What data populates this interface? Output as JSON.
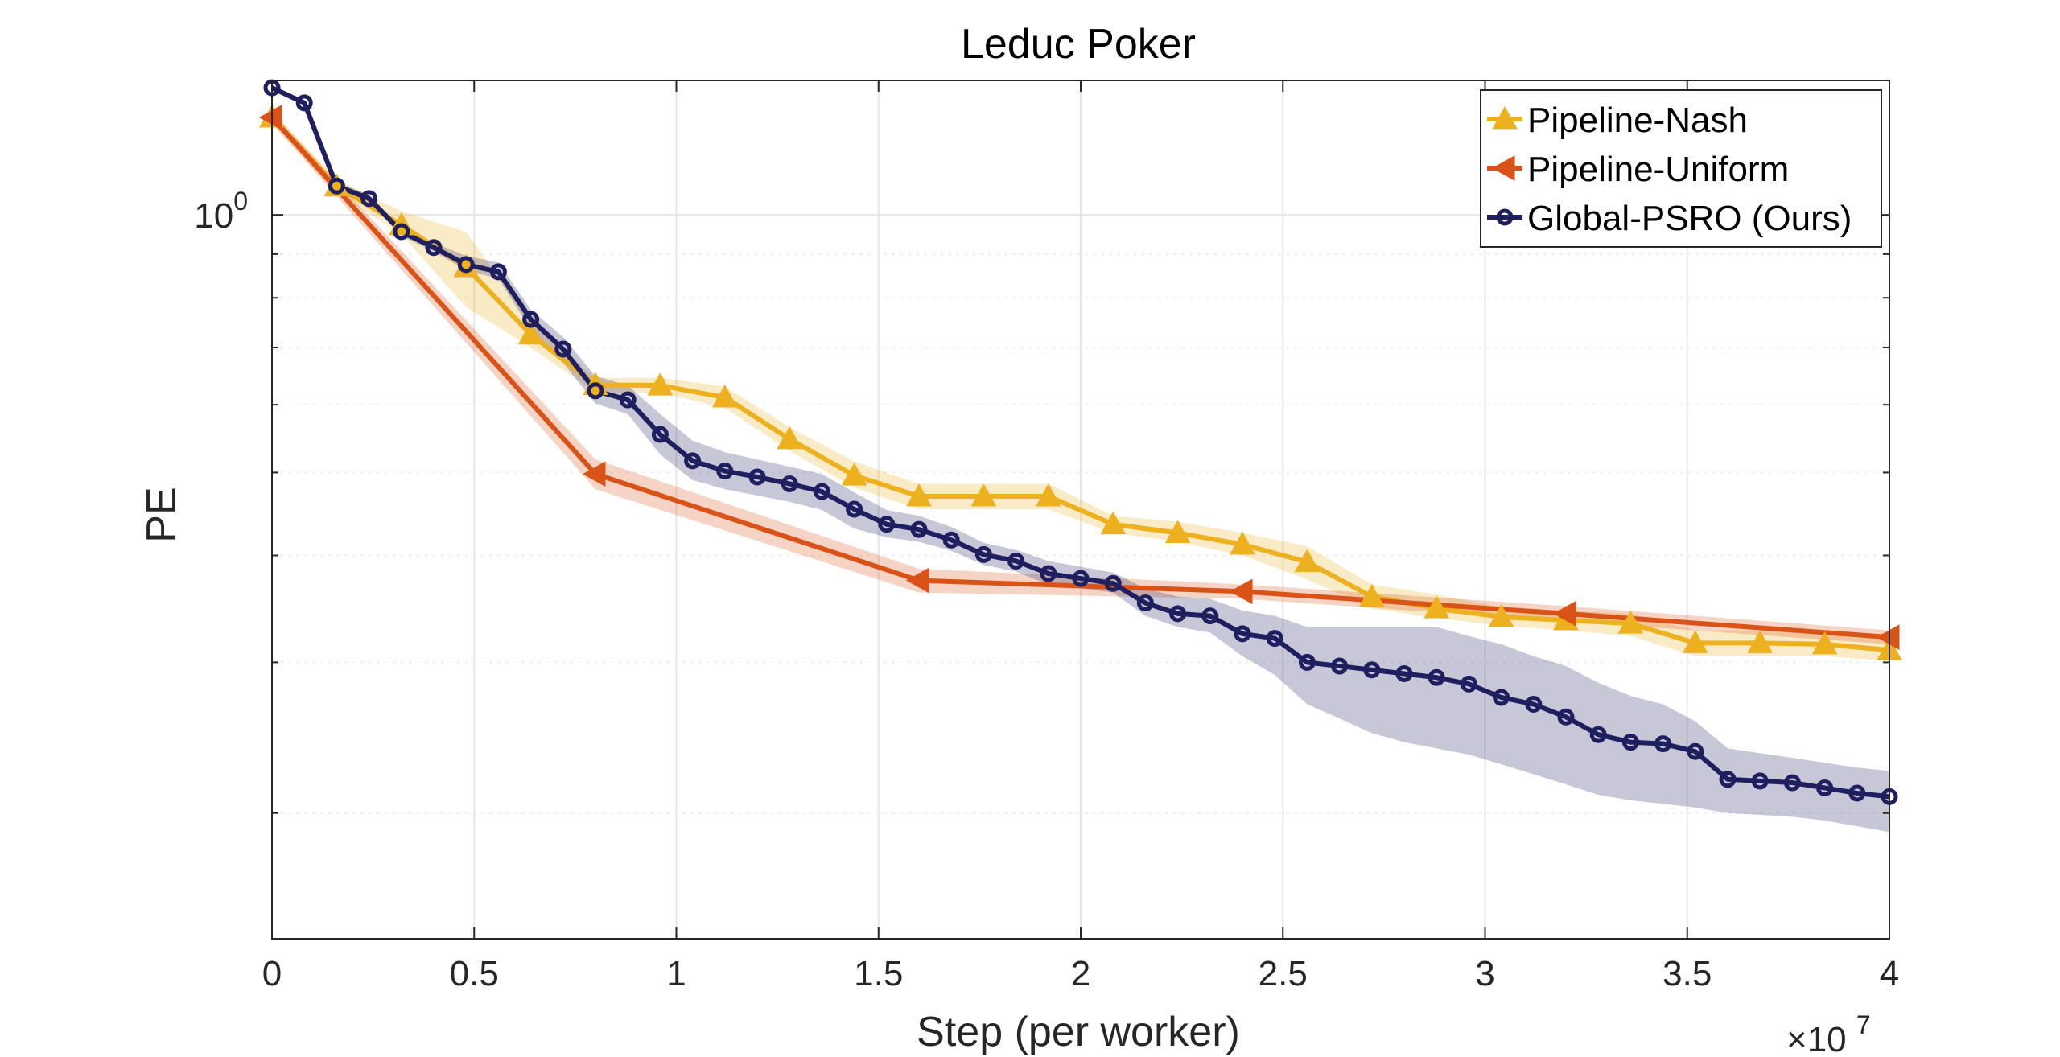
{
  "chart_data": {
    "type": "line",
    "title": "Leduc Poker",
    "xlabel": "Step (per worker)",
    "ylabel": "PE",
    "x_multiplier_label": "×10",
    "x_multiplier_exp": "7",
    "xlim": [
      0,
      4
    ],
    "ylim": [
      0.1426,
      1.436
    ],
    "yscale": "log",
    "x_ticks": [
      "0",
      "0.5",
      "1",
      "1.5",
      "2",
      "2.5",
      "3",
      "3.5",
      "4"
    ],
    "y_tick_label_base": "10",
    "y_tick_label_exp": "0",
    "grid": true,
    "legend_position": "top-right",
    "series": [
      {
        "name": "Pipeline-Nash",
        "color": "#EDB120",
        "marker": "triangle-up",
        "x": [
          0,
          0.16,
          0.32,
          0.48,
          0.64,
          0.8,
          0.96,
          1.12,
          1.28,
          1.44,
          1.6,
          1.76,
          1.92,
          2.08,
          2.24,
          2.4,
          2.56,
          2.72,
          2.88,
          3.04,
          3.2,
          3.36,
          3.52,
          3.68,
          3.84,
          4.0
        ],
        "y": [
          1.3,
          1.08,
          0.973,
          0.869,
          0.725,
          0.633,
          0.632,
          0.612,
          0.547,
          0.496,
          0.469,
          0.469,
          0.469,
          0.435,
          0.425,
          0.412,
          0.393,
          0.358,
          0.347,
          0.339,
          0.336,
          0.333,
          0.316,
          0.316,
          0.315,
          0.31
        ],
        "band_lower": [
          1.28,
          1.06,
          0.95,
          0.78,
          0.7,
          0.62,
          0.62,
          0.595,
          0.53,
          0.48,
          0.453,
          0.453,
          0.453,
          0.425,
          0.415,
          0.4,
          0.375,
          0.347,
          0.338,
          0.331,
          0.327,
          0.322,
          0.305,
          0.305,
          0.305,
          0.301
        ],
        "band_upper": [
          1.32,
          1.1,
          1.01,
          0.955,
          0.75,
          0.645,
          0.645,
          0.63,
          0.565,
          0.515,
          0.485,
          0.485,
          0.485,
          0.445,
          0.438,
          0.425,
          0.41,
          0.37,
          0.36,
          0.348,
          0.345,
          0.342,
          0.327,
          0.327,
          0.325,
          0.319
        ]
      },
      {
        "name": "Pipeline-Uniform",
        "color": "#D95319",
        "marker": "triangle-left",
        "x": [
          0,
          0.8,
          1.6,
          2.4,
          3.2,
          4.0
        ],
        "y": [
          1.3,
          0.498,
          0.374,
          0.363,
          0.342,
          0.321
        ],
        "band_lower": [
          1.28,
          0.478,
          0.362,
          0.356,
          0.335,
          0.315
        ],
        "band_upper": [
          1.32,
          0.518,
          0.386,
          0.37,
          0.349,
          0.327
        ]
      },
      {
        "name": "Global-PSRO (Ours)",
        "color": "#1F1F5F",
        "marker": "circle",
        "x": [
          0,
          0.08,
          0.16,
          0.24,
          0.32,
          0.4,
          0.48,
          0.56,
          0.64,
          0.72,
          0.8,
          0.88,
          0.96,
          1.04,
          1.12,
          1.2,
          1.28,
          1.36,
          1.44,
          1.52,
          1.6,
          1.68,
          1.76,
          1.84,
          1.92,
          2.0,
          2.08,
          2.16,
          2.24,
          2.32,
          2.4,
          2.48,
          2.56,
          2.64,
          2.72,
          2.8,
          2.88,
          2.96,
          3.04,
          3.12,
          3.2,
          3.28,
          3.36,
          3.44,
          3.52,
          3.6,
          3.68,
          3.76,
          3.84,
          3.92,
          4.0
        ],
        "y": [
          1.408,
          1.352,
          1.081,
          1.045,
          0.956,
          0.916,
          0.875,
          0.858,
          0.755,
          0.697,
          0.623,
          0.608,
          0.554,
          0.516,
          0.502,
          0.494,
          0.485,
          0.475,
          0.453,
          0.435,
          0.429,
          0.417,
          0.401,
          0.394,
          0.381,
          0.376,
          0.371,
          0.352,
          0.342,
          0.34,
          0.324,
          0.32,
          0.3,
          0.297,
          0.294,
          0.291,
          0.288,
          0.283,
          0.273,
          0.268,
          0.259,
          0.247,
          0.242,
          0.241,
          0.236,
          0.219,
          0.218,
          0.217,
          0.214,
          0.211,
          0.209
        ],
        "band_lower": [
          1.398,
          1.342,
          1.07,
          1.034,
          0.945,
          0.906,
          0.862,
          0.842,
          0.735,
          0.672,
          0.602,
          0.585,
          0.525,
          0.49,
          0.478,
          0.47,
          0.462,
          0.452,
          0.43,
          0.42,
          0.415,
          0.405,
          0.39,
          0.383,
          0.37,
          0.366,
          0.362,
          0.34,
          0.33,
          0.325,
          0.305,
          0.29,
          0.268,
          0.258,
          0.248,
          0.242,
          0.238,
          0.234,
          0.228,
          0.222,
          0.216,
          0.21,
          0.207,
          0.205,
          0.203,
          0.2,
          0.199,
          0.198,
          0.196,
          0.193,
          0.19
        ],
        "band_upper": [
          1.418,
          1.362,
          1.092,
          1.056,
          0.967,
          0.928,
          0.895,
          0.88,
          0.775,
          0.72,
          0.648,
          0.632,
          0.585,
          0.545,
          0.528,
          0.518,
          0.508,
          0.498,
          0.474,
          0.452,
          0.445,
          0.432,
          0.414,
          0.406,
          0.394,
          0.388,
          0.382,
          0.366,
          0.358,
          0.356,
          0.345,
          0.34,
          0.33,
          0.33,
          0.33,
          0.33,
          0.33,
          0.322,
          0.315,
          0.305,
          0.297,
          0.284,
          0.274,
          0.268,
          0.256,
          0.238,
          0.235,
          0.232,
          0.229,
          0.226,
          0.224
        ]
      }
    ]
  }
}
